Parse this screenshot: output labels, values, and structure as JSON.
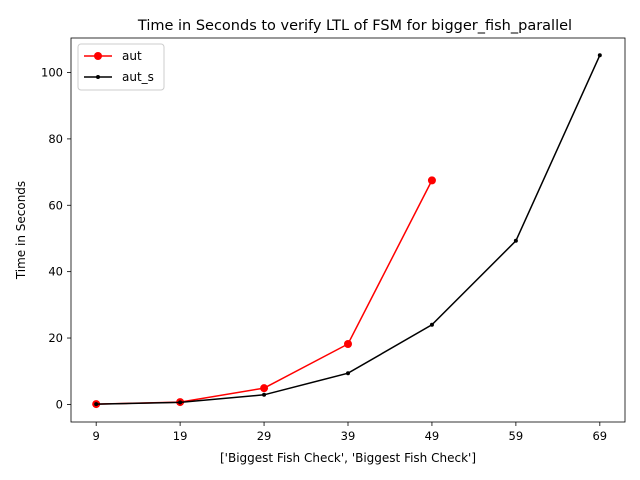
{
  "chart_data": {
    "type": "line",
    "title": "Time in Seconds to verify LTL of FSM for bigger_fish_parallel",
    "xlabel": "['Biggest Fish Check', 'Biggest Fish Check']",
    "ylabel": "Time in Seconds",
    "x_ticks": [
      9,
      19,
      29,
      39,
      49,
      59,
      69
    ],
    "y_ticks": [
      0,
      20,
      40,
      60,
      80,
      100
    ],
    "xlim": [
      6.0,
      72.0
    ],
    "ylim": [
      -5.3,
      110.4
    ],
    "legend": "upper-left",
    "grid": false,
    "series": [
      {
        "name": "aut",
        "color": "#ff0000",
        "marker": "large-circle",
        "x": [
          9,
          19,
          29,
          39,
          49
        ],
        "y": [
          0.1,
          0.7,
          4.9,
          18.2,
          67.5
        ]
      },
      {
        "name": "aut_s",
        "color": "#000000",
        "marker": "small-dot",
        "x": [
          9,
          19,
          29,
          39,
          49,
          59,
          69
        ],
        "y": [
          0.1,
          0.6,
          2.9,
          9.4,
          24.0,
          49.3,
          105.2
        ]
      }
    ]
  }
}
